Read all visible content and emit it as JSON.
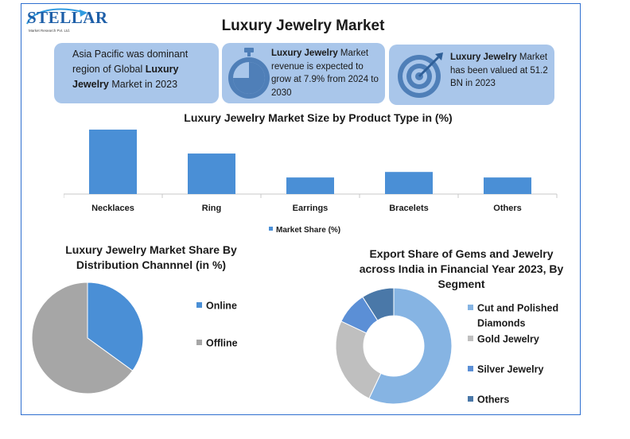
{
  "header": {
    "title": "Luxury Jewelry Market",
    "logo_text": "STELLAR",
    "logo_subtext": "Market Research Pvt. Ltd."
  },
  "cards": [
    {
      "pre": "Asia Pacific was dominant region of Global ",
      "bold": "Luxury Jewelry",
      "post": " Market in 2023"
    },
    {
      "pre": "",
      "bold": "Luxury Jewelry",
      "post": " Market revenue is expected to grow at 7.9% from 2024 to 2030",
      "icon": "stopwatch-icon"
    },
    {
      "pre": "",
      "bold": "Luxury Jewelry",
      "post": " Market has been valued at 51.2 BN in 2023",
      "icon": "target-icon"
    }
  ],
  "colors": {
    "card_bg": "#a9c6ea",
    "bar": "#4a8fd6",
    "online": "#4a8fd6",
    "offline": "#a6a6a6",
    "cut_polished": "#86b4e3",
    "gold": "#bfbfbf",
    "silver": "#5b8fd6",
    "others": "#4a78a8",
    "frame": "#2f6fd0"
  },
  "chart_data": [
    {
      "type": "bar",
      "title": "Luxury Jewelry Market Size by Product Type in (%)",
      "categories": [
        "Necklaces",
        "Ring",
        "Earrings",
        "Bracelets",
        "Others"
      ],
      "series": [
        {
          "name": "Market Share (%)",
          "values": [
            35,
            22,
            9,
            12,
            9
          ]
        }
      ],
      "ylim": [
        0,
        38
      ],
      "legend": "bottom"
    },
    {
      "type": "pie",
      "title": "Luxury Jewelry Market Share By Distribution Channnel (in %)",
      "labels": [
        "Online",
        "Offline"
      ],
      "values": [
        35,
        65
      ],
      "legend": "right"
    },
    {
      "type": "pie",
      "donut": true,
      "title": "Export Share of Gems and Jewelry across India in Financial Year 2023, By Segment",
      "labels": [
        "Cut and Polished Diamonds",
        "Gold Jewelry",
        "Silver Jewelry",
        "Others"
      ],
      "values": [
        57,
        25,
        9,
        9
      ],
      "legend": "right"
    }
  ]
}
